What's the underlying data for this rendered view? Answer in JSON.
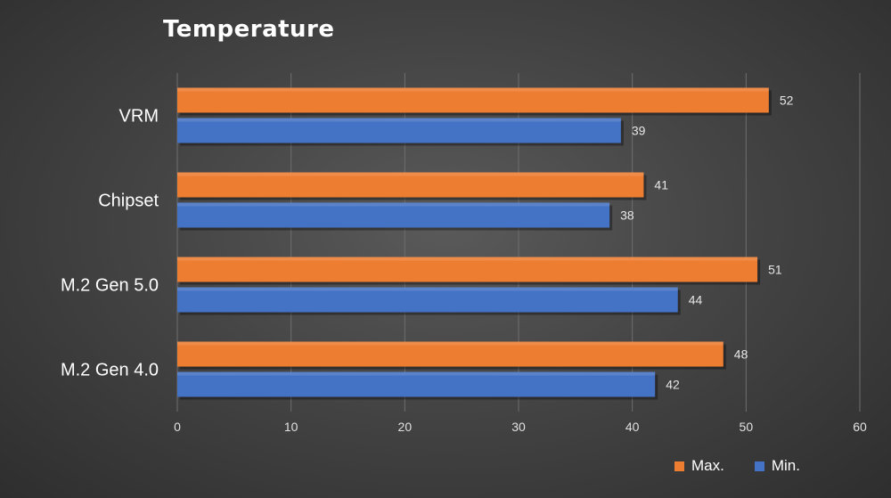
{
  "chart_data": {
    "type": "bar",
    "orientation": "horizontal",
    "title": "Temperature",
    "categories": [
      "VRM",
      "Chipset",
      "M.2 Gen 5.0",
      "M.2 Gen 4.0"
    ],
    "series": [
      {
        "name": "Max.",
        "color": "#ed7d31",
        "values": [
          52,
          41,
          51,
          48
        ]
      },
      {
        "name": "Min.",
        "color": "#4472c4",
        "values": [
          39,
          38,
          44,
          42
        ]
      }
    ],
    "xlim": [
      0,
      60
    ],
    "xticks": [
      0,
      10,
      20,
      30,
      40,
      50,
      60
    ],
    "grid": true,
    "legend_position": "bottom-right",
    "data_labels": true
  }
}
